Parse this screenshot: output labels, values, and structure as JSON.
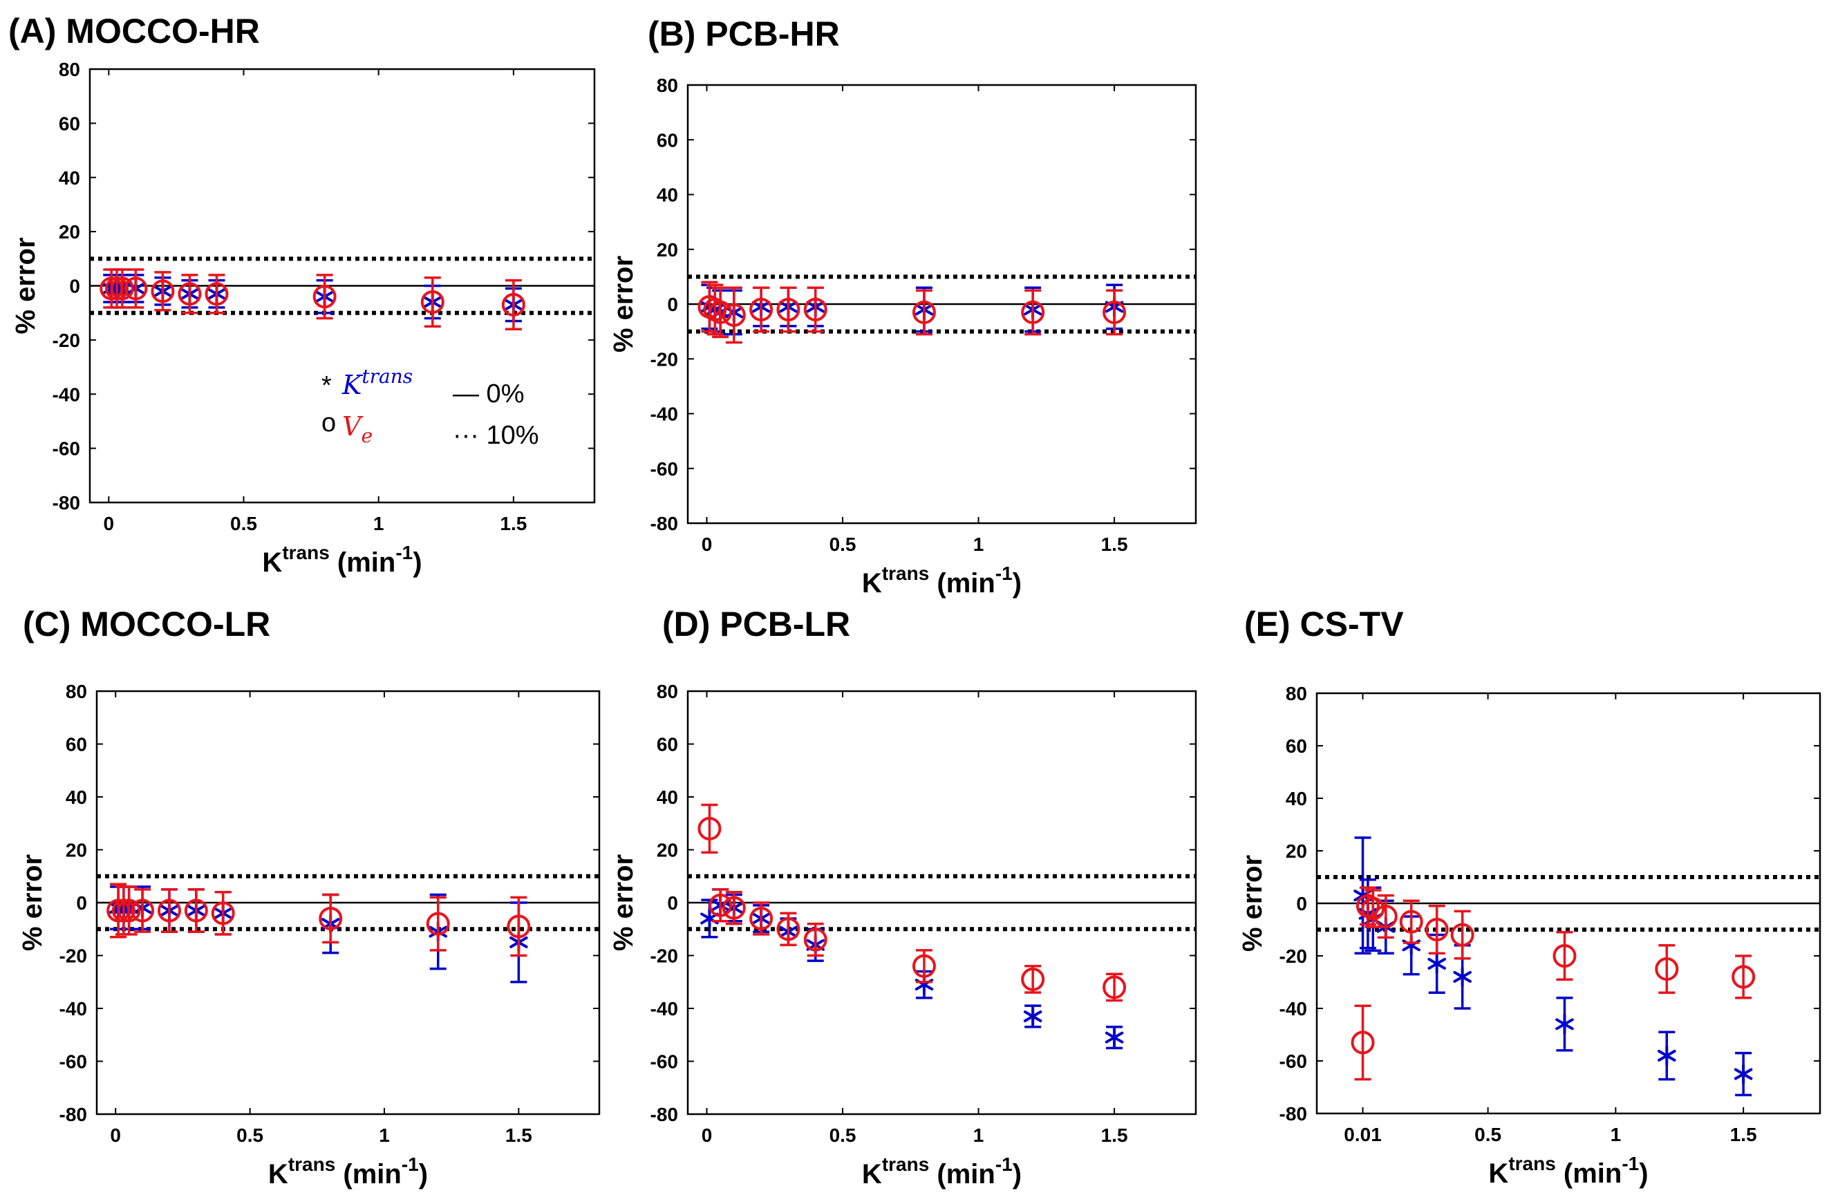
{
  "colors": {
    "ktrans": "#0000cc",
    "ve": "#e8141c",
    "axis": "#000000"
  },
  "legend": {
    "ktrans_symbol": "*",
    "ktrans_main": "K",
    "ktrans_sup": "trans",
    "ve_symbol": "o",
    "ve_main": "V",
    "ve_sub": "e",
    "solid_label": "— 0%",
    "dotted_label": "··· 10%"
  },
  "chart_data": [
    {
      "type": "scatter",
      "title": "(A) MOCCO-HR",
      "xlabel_main": "K",
      "xlabel_sup": "trans",
      "xlabel_unit": " (min",
      "xlabel_unit_sup": "-1",
      "xlabel_close": ")",
      "ylabel": "% error",
      "xlim": [
        -0.07,
        1.8
      ],
      "ylim": [
        -80,
        80
      ],
      "xticks": [
        0,
        0.5,
        1,
        1.5
      ],
      "xtick_labels": [
        "0",
        "0.5",
        "1",
        "1.5"
      ],
      "yticks": [
        80,
        60,
        40,
        20,
        0,
        -20,
        -40,
        -60,
        -80
      ],
      "ytick_labels": [
        "80",
        "60",
        "40",
        "20",
        "0",
        "-20",
        "-40",
        "-60",
        "-80"
      ],
      "reference_lines": {
        "solid": 0,
        "dotted": [
          10,
          -10
        ]
      },
      "show_legend": true,
      "series": [
        {
          "name": "K^trans",
          "marker": "star",
          "x": [
            0.01,
            0.03,
            0.05,
            0.1,
            0.2,
            0.3,
            0.4,
            0.8,
            1.2,
            1.5
          ],
          "y": [
            -1,
            -1,
            -1,
            -1,
            -2,
            -3,
            -3,
            -4,
            -6,
            -7
          ],
          "err": [
            5,
            5,
            5,
            5,
            5,
            5,
            5,
            6,
            6,
            6
          ]
        },
        {
          "name": "V_e",
          "marker": "circle",
          "x": [
            0.01,
            0.03,
            0.05,
            0.1,
            0.2,
            0.3,
            0.4,
            0.8,
            1.2,
            1.5
          ],
          "y": [
            -1,
            -1,
            -1,
            -1,
            -2,
            -3,
            -3,
            -4,
            -6,
            -7
          ],
          "err": [
            7,
            7,
            7,
            7,
            7,
            7,
            7,
            8,
            9,
            9
          ]
        }
      ]
    },
    {
      "type": "scatter",
      "title": "(B) PCB-HR",
      "xlabel_main": "K",
      "xlabel_sup": "trans",
      "xlabel_unit": " (min",
      "xlabel_unit_sup": "-1",
      "xlabel_close": ")",
      "ylabel": "% error",
      "xlim": [
        -0.07,
        1.8
      ],
      "ylim": [
        -80,
        80
      ],
      "xticks": [
        0,
        0.5,
        1,
        1.5
      ],
      "xtick_labels": [
        "0",
        "0.5",
        "1",
        "1.5"
      ],
      "yticks": [
        80,
        60,
        40,
        20,
        0,
        -20,
        -40,
        -60,
        -80
      ],
      "ytick_labels": [
        "80",
        "60",
        "40",
        "20",
        "0",
        "-20",
        "-40",
        "-60",
        "-80"
      ],
      "reference_lines": {
        "solid": 0,
        "dotted": [
          10,
          -10
        ]
      },
      "show_legend": false,
      "series": [
        {
          "name": "K^trans",
          "marker": "star",
          "x": [
            0.01,
            0.03,
            0.05,
            0.1,
            0.2,
            0.3,
            0.4,
            0.8,
            1.2,
            1.5
          ],
          "y": [
            -1,
            -2,
            -3,
            -3,
            -1,
            -1,
            -1,
            -2,
            -2,
            -1
          ],
          "err": [
            8,
            8,
            8,
            8,
            7,
            7,
            7,
            8,
            8,
            8
          ]
        },
        {
          "name": "V_e",
          "marker": "circle",
          "x": [
            0.01,
            0.03,
            0.05,
            0.1,
            0.2,
            0.3,
            0.4,
            0.8,
            1.2,
            1.5
          ],
          "y": [
            -1,
            -2,
            -3,
            -4,
            -2,
            -2,
            -2,
            -3,
            -3,
            -3
          ],
          "err": [
            9,
            9,
            9,
            10,
            8,
            8,
            8,
            8,
            8,
            8
          ]
        }
      ]
    },
    {
      "type": "scatter",
      "title": "(C) MOCCO-LR",
      "xlabel_main": "K",
      "xlabel_sup": "trans",
      "xlabel_unit": " (min",
      "xlabel_unit_sup": "-1",
      "xlabel_close": ")",
      "ylabel": "% error",
      "xlim": [
        -0.07,
        1.8
      ],
      "ylim": [
        -80,
        80
      ],
      "xticks": [
        0,
        0.5,
        1,
        1.5
      ],
      "xtick_labels": [
        "0",
        "0.5",
        "1",
        "1.5"
      ],
      "yticks": [
        80,
        60,
        40,
        20,
        0,
        -20,
        -40,
        -60,
        -80
      ],
      "ytick_labels": [
        "80",
        "60",
        "40",
        "20",
        "0",
        "-20",
        "-40",
        "-60",
        "-80"
      ],
      "reference_lines": {
        "solid": 0,
        "dotted": [
          10,
          -10
        ]
      },
      "show_legend": false,
      "series": [
        {
          "name": "K^trans",
          "marker": "star",
          "x": [
            0.01,
            0.03,
            0.05,
            0.1,
            0.2,
            0.3,
            0.4,
            0.8,
            1.2,
            1.5
          ],
          "y": [
            -2,
            -2,
            -2,
            -2,
            -3,
            -3,
            -4,
            -8,
            -11,
            -15
          ],
          "err": [
            8,
            8,
            8,
            8,
            8,
            8,
            8,
            11,
            14,
            15
          ]
        },
        {
          "name": "V_e",
          "marker": "circle",
          "x": [
            0.01,
            0.03,
            0.05,
            0.1,
            0.2,
            0.3,
            0.4,
            0.8,
            1.2,
            1.5
          ],
          "y": [
            -3,
            -3,
            -3,
            -3,
            -3,
            -3,
            -4,
            -6,
            -8,
            -9
          ],
          "err": [
            10,
            9,
            9,
            8,
            8,
            8,
            8,
            9,
            10,
            11
          ]
        }
      ]
    },
    {
      "type": "scatter",
      "title": "(D) PCB-LR",
      "xlabel_main": "K",
      "xlabel_sup": "trans",
      "xlabel_unit": " (min",
      "xlabel_unit_sup": "-1",
      "xlabel_close": ")",
      "ylabel": "% error",
      "xlim": [
        -0.07,
        1.8
      ],
      "ylim": [
        -80,
        80
      ],
      "xticks": [
        0,
        0.5,
        1,
        1.5
      ],
      "xtick_labels": [
        "0",
        "0.5",
        "1",
        "1.5"
      ],
      "yticks": [
        80,
        60,
        40,
        20,
        0,
        -20,
        -40,
        -60,
        -80
      ],
      "ytick_labels": [
        "80",
        "60",
        "40",
        "20",
        "0",
        "-20",
        "-40",
        "-60",
        "-80"
      ],
      "reference_lines": {
        "solid": 0,
        "dotted": [
          10,
          -10
        ]
      },
      "show_legend": false,
      "series": [
        {
          "name": "K^trans",
          "marker": "star",
          "x": [
            0.01,
            0.05,
            0.1,
            0.2,
            0.3,
            0.4,
            0.8,
            1.2,
            1.5
          ],
          "y": [
            -6,
            -1,
            -2,
            -6,
            -11,
            -16,
            -31,
            -43,
            -51
          ],
          "err": [
            7,
            6,
            5,
            5,
            5,
            6,
            5,
            4,
            4
          ]
        },
        {
          "name": "V_e",
          "marker": "circle",
          "x": [
            0.01,
            0.05,
            0.1,
            0.2,
            0.3,
            0.4,
            0.8,
            1.2,
            1.5
          ],
          "y": [
            28,
            -1,
            -2,
            -6,
            -10,
            -14,
            -24,
            -29,
            -32
          ],
          "err": [
            9,
            6,
            6,
            6,
            6,
            6,
            6,
            5,
            5
          ]
        }
      ]
    },
    {
      "type": "scatter",
      "title": "(E) CS-TV",
      "xlabel_main": "K",
      "xlabel_sup": "trans",
      "xlabel_unit": " (min",
      "xlabel_unit_sup": "-1",
      "xlabel_close": ")",
      "ylabel": "% error",
      "xlim": [
        -0.17,
        1.8
      ],
      "ylim": [
        -80,
        80
      ],
      "xticks": [
        0.01,
        0.5,
        1,
        1.5
      ],
      "xtick_labels": [
        "0.01",
        "0.5",
        "1",
        "1.5"
      ],
      "yticks": [
        80,
        60,
        40,
        20,
        0,
        -20,
        -40,
        -60,
        -80
      ],
      "ytick_labels": [
        "80",
        "60",
        "40",
        "20",
        "0",
        "-20",
        "-40",
        "-60",
        "-80"
      ],
      "reference_lines": {
        "solid": 0,
        "dotted": [
          10,
          -10
        ]
      },
      "show_legend": false,
      "series": [
        {
          "name": "K^trans",
          "marker": "star",
          "x": [
            0.01,
            0.03,
            0.05,
            0.1,
            0.2,
            0.3,
            0.4,
            0.8,
            1.2,
            1.5
          ],
          "y": [
            3,
            -4,
            -6,
            -9,
            -16,
            -23,
            -28,
            -46,
            -58,
            -65
          ],
          "err": [
            22,
            13,
            12,
            10,
            11,
            11,
            12,
            10,
            9,
            8
          ]
        },
        {
          "name": "V_e",
          "marker": "circle",
          "x": [
            0.01,
            0.03,
            0.05,
            0.1,
            0.2,
            0.3,
            0.4,
            0.8,
            1.2,
            1.5
          ],
          "y": [
            -53,
            -1,
            -2,
            -5,
            -7,
            -10,
            -12,
            -20,
            -25,
            -28
          ],
          "err": [
            14,
            7,
            7,
            8,
            8,
            9,
            9,
            9,
            9,
            8
          ]
        }
      ]
    }
  ]
}
